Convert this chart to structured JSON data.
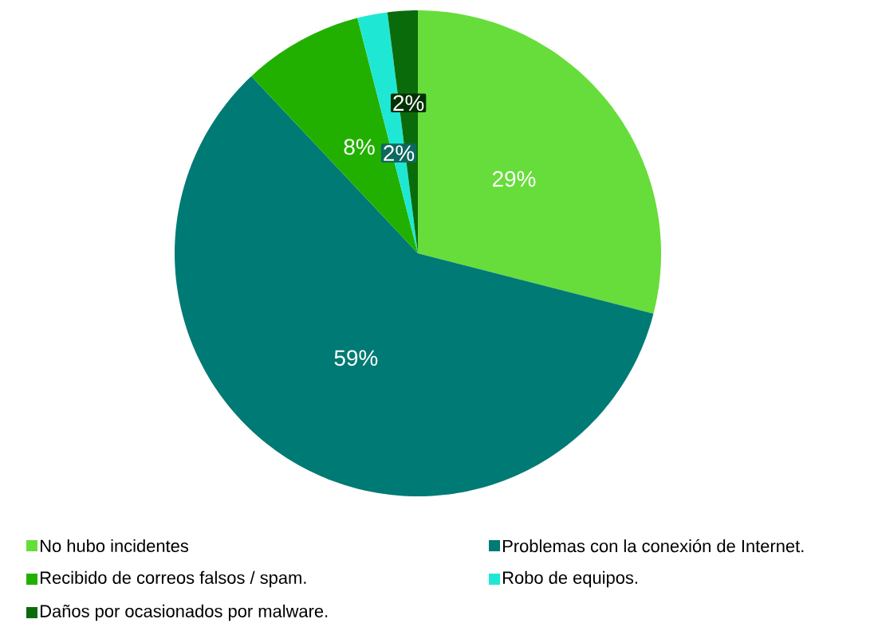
{
  "chart_data": {
    "type": "pie",
    "categories": [
      "No hubo incidentes",
      "Problemas con la conexión de Internet.",
      "Recibido de correos falsos / spam.",
      "Robo de equipos.",
      "Daños por ocasionados por malware."
    ],
    "values": [
      29,
      59,
      8,
      2,
      2
    ],
    "colors": [
      "#66dd3a",
      "#007a74",
      "#22b000",
      "#1ee8d4",
      "#0a6b0a"
    ],
    "value_labels": [
      "29%",
      "59%",
      "8%",
      "2%",
      "2%"
    ],
    "legend": "bottom"
  }
}
